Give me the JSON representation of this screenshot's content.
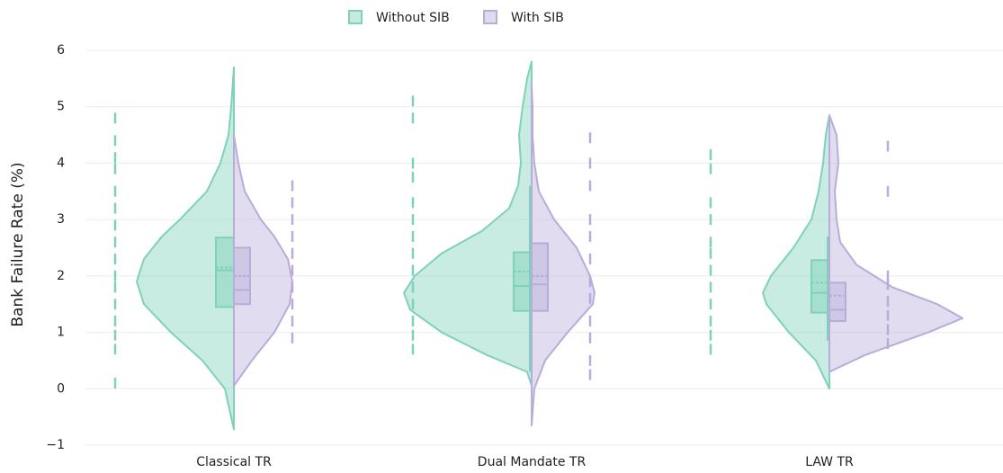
{
  "chart_data": {
    "type": "violin",
    "ylabel": "Bank Failure Rate (%)",
    "categories": [
      "Classical TR",
      "Dual Mandate TR",
      "LAW TR"
    ],
    "ylim": [
      -1,
      6
    ],
    "yticks": [
      {
        "value": -1,
        "label": "−1"
      },
      0,
      1,
      2,
      3,
      4,
      5,
      6
    ],
    "grid": true,
    "legend": "top",
    "series": [
      {
        "name": "Without  SIB",
        "color": "#7fd1b9",
        "violins": [
          {
            "y": [
              -0.72,
              0,
              0.5,
              1,
              1.5,
              1.9,
              2.3,
              2.7,
              3,
              3.5,
              4,
              4.5,
              5,
              5.7
            ],
            "density": [
              0,
              0.1,
              0.35,
              0.7,
              1.0,
              1.08,
              1.0,
              0.8,
              0.6,
              0.3,
              0.15,
              0.06,
              0.03,
              0
            ],
            "box": {
              "q1": 1.45,
              "median": 2.1,
              "q3": 2.68,
              "mean": 2.15
            },
            "points": [
              0.1,
              0.7,
              0.95,
              1.2,
              1.5,
              1.8,
              2.0,
              2.3,
              2.6,
              2.9,
              3.2,
              3.5,
              3.9,
              4.1,
              4.4,
              4.8
            ]
          },
          {
            "y": [
              0.05,
              0.3,
              0.6,
              1,
              1.4,
              1.7,
              2,
              2.4,
              2.8,
              3.2,
              3.6,
              4,
              4.5,
              5,
              5.5,
              5.8
            ],
            "density": [
              0,
              0.05,
              0.5,
              1.0,
              1.35,
              1.42,
              1.3,
              1.0,
              0.55,
              0.25,
              0.15,
              0.12,
              0.14,
              0.1,
              0.05,
              0
            ],
            "box": {
              "q1": 1.38,
              "median": 1.82,
              "q3": 2.42,
              "mean": 2.08,
              "whisker_low": 0.3,
              "whisker_high": 3.6
            },
            "points": [
              0.7,
              0.95,
              1.2,
              1.5,
              1.8,
              2.1,
              2.4,
              2.7,
              3.0,
              3.3,
              3.75,
              4.0,
              4.8,
              5.1
            ]
          },
          {
            "y": [
              0,
              0.5,
              1,
              1.5,
              1.7,
              2,
              2.5,
              3,
              3.5,
              4,
              4.5,
              4.85
            ],
            "density": [
              0,
              0.15,
              0.45,
              0.7,
              0.74,
              0.65,
              0.4,
              0.2,
              0.12,
              0.07,
              0.04,
              0
            ],
            "box": {
              "q1": 1.35,
              "median": 1.7,
              "q3": 2.28,
              "mean": 1.88,
              "whisker_low": 0.85,
              "whisker_high": 2.7
            },
            "points": [
              0.7,
              0.95,
              1.2,
              1.5,
              1.8,
              2.1,
              2.4,
              2.6,
              3.0,
              3.3,
              3.9,
              4.15
            ]
          }
        ]
      },
      {
        "name": "With SIB",
        "color": "#b8acd9",
        "violins": [
          {
            "y": [
              0.05,
              0.5,
              1,
              1.5,
              1.9,
              2.3,
              2.7,
              3,
              3.5,
              4,
              4.5
            ],
            "density": [
              0,
              0.2,
              0.45,
              0.62,
              0.65,
              0.6,
              0.45,
              0.3,
              0.12,
              0.05,
              0
            ],
            "box": {
              "q1": 1.5,
              "median": 1.75,
              "q3": 2.5,
              "mean": 2.0,
              "whisker_low": 0.95,
              "whisker_high": 3.55
            },
            "points": [
              0.9,
              1.2,
              1.5,
              1.8,
              2.1,
              2.4,
              2.7,
              3.0,
              3.3,
              3.6
            ]
          },
          {
            "y": [
              -0.65,
              0,
              0.5,
              1,
              1.5,
              1.7,
              2,
              2.5,
              3,
              3.5,
              4,
              4.5,
              5,
              5.4
            ],
            "density": [
              0,
              0.03,
              0.15,
              0.4,
              0.68,
              0.7,
              0.65,
              0.5,
              0.25,
              0.08,
              0.03,
              0.01,
              0.01,
              0
            ],
            "box": {
              "q1": 1.38,
              "median": 1.85,
              "q3": 2.58,
              "mean": 2.0,
              "whisker_low": 0.8,
              "whisker_high": 3.95
            },
            "points": [
              0.25,
              0.5,
              0.9,
              1.2,
              1.6,
              1.9,
              2.3,
              2.7,
              3.0,
              3.6,
              4.0,
              4.45
            ]
          },
          {
            "y": [
              0.3,
              0.6,
              1,
              1.25,
              1.5,
              1.8,
              2.2,
              2.6,
              3,
              3.5,
              4,
              4.5,
              4.85
            ],
            "density": [
              0,
              0.4,
              1.1,
              1.48,
              1.2,
              0.7,
              0.3,
              0.12,
              0.08,
              0.06,
              0.1,
              0.08,
              0
            ],
            "box": {
              "q1": 1.2,
              "median": 1.4,
              "q3": 1.88,
              "mean": 1.65,
              "whisker_low": 0.78,
              "whisker_high": 3.42
            },
            "points": [
              0.8,
              1.05,
              1.3,
              1.55,
              1.85,
              2.0,
              3.5,
              4.3
            ]
          }
        ]
      }
    ]
  }
}
